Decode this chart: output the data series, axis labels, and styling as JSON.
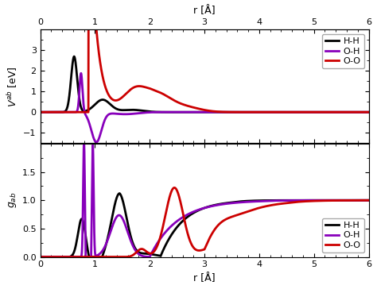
{
  "xlim": [
    0,
    6
  ],
  "upper_ylim": [
    -1.5,
    4.0
  ],
  "lower_ylim": [
    0,
    2.0
  ],
  "upper_yticks": [
    -1,
    0,
    1,
    2,
    3
  ],
  "lower_yticks": [
    0,
    0.5,
    1.0,
    1.5
  ],
  "colors": {
    "HH": "#000000",
    "OH": "#8800bb",
    "OO": "#cc0000"
  },
  "lw": 2.0,
  "background": "#ffffff",
  "figsize": [
    4.74,
    3.64
  ],
  "dpi": 100
}
